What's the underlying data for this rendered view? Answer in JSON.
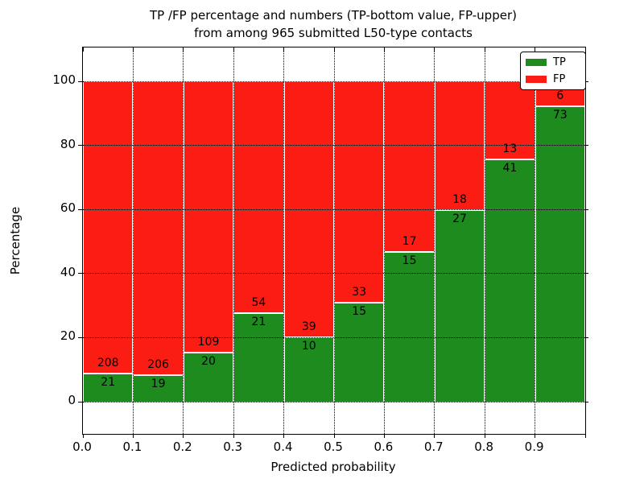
{
  "title_line1": "TP /FP percentage and numbers (TP-bottom value, FP-upper)",
  "title_line2": "from among 965 submitted L50-type contacts",
  "chart_data": {
    "type": "bar",
    "stacked": true,
    "normalized_to_percent": true,
    "title": "TP /FP percentage and numbers (TP-bottom value, FP-upper) from among 965 submitted L50-type contacts",
    "xlabel": "Predicted probability",
    "ylabel": "Percentage",
    "total_contacts": 965,
    "categories": [
      "0.0",
      "0.1",
      "0.2",
      "0.3",
      "0.4",
      "0.5",
      "0.6",
      "0.7",
      "0.8",
      "0.9"
    ],
    "bin_width": 0.1,
    "series": [
      {
        "name": "TP",
        "color": "#1e8b1e",
        "counts": [
          21,
          19,
          20,
          21,
          10,
          15,
          15,
          27,
          41,
          73
        ]
      },
      {
        "name": "FP",
        "color": "#fb1d13",
        "counts": [
          208,
          206,
          109,
          54,
          39,
          33,
          17,
          18,
          13,
          6
        ]
      }
    ],
    "tp_percent": [
      9.17,
      8.44,
      15.5,
      28.0,
      20.41,
      31.25,
      46.88,
      60.0,
      75.93,
      92.41
    ],
    "x_tick_labels": [
      "0.0",
      "0.1",
      "0.2",
      "0.3",
      "0.4",
      "0.5",
      "0.6",
      "0.7",
      "0.8",
      "0.9"
    ],
    "y_tick_labels": [
      "0",
      "20",
      "40",
      "60",
      "80",
      "100"
    ],
    "y_ticks": [
      0,
      20,
      40,
      60,
      80,
      100
    ],
    "ylim": [
      -10,
      110.5
    ],
    "xlim": [
      0.0,
      1.0
    ],
    "grid": "dotted black, horizontal at y ticks and vertical at x ticks",
    "legend_position": "upper right",
    "bar_label_rule": "TP count inside top of green segment, FP count above boundary inside red segment"
  },
  "legend": {
    "items": [
      {
        "label": "TP",
        "color": "#1e8b1e"
      },
      {
        "label": "FP",
        "color": "#fb1d13"
      }
    ]
  }
}
